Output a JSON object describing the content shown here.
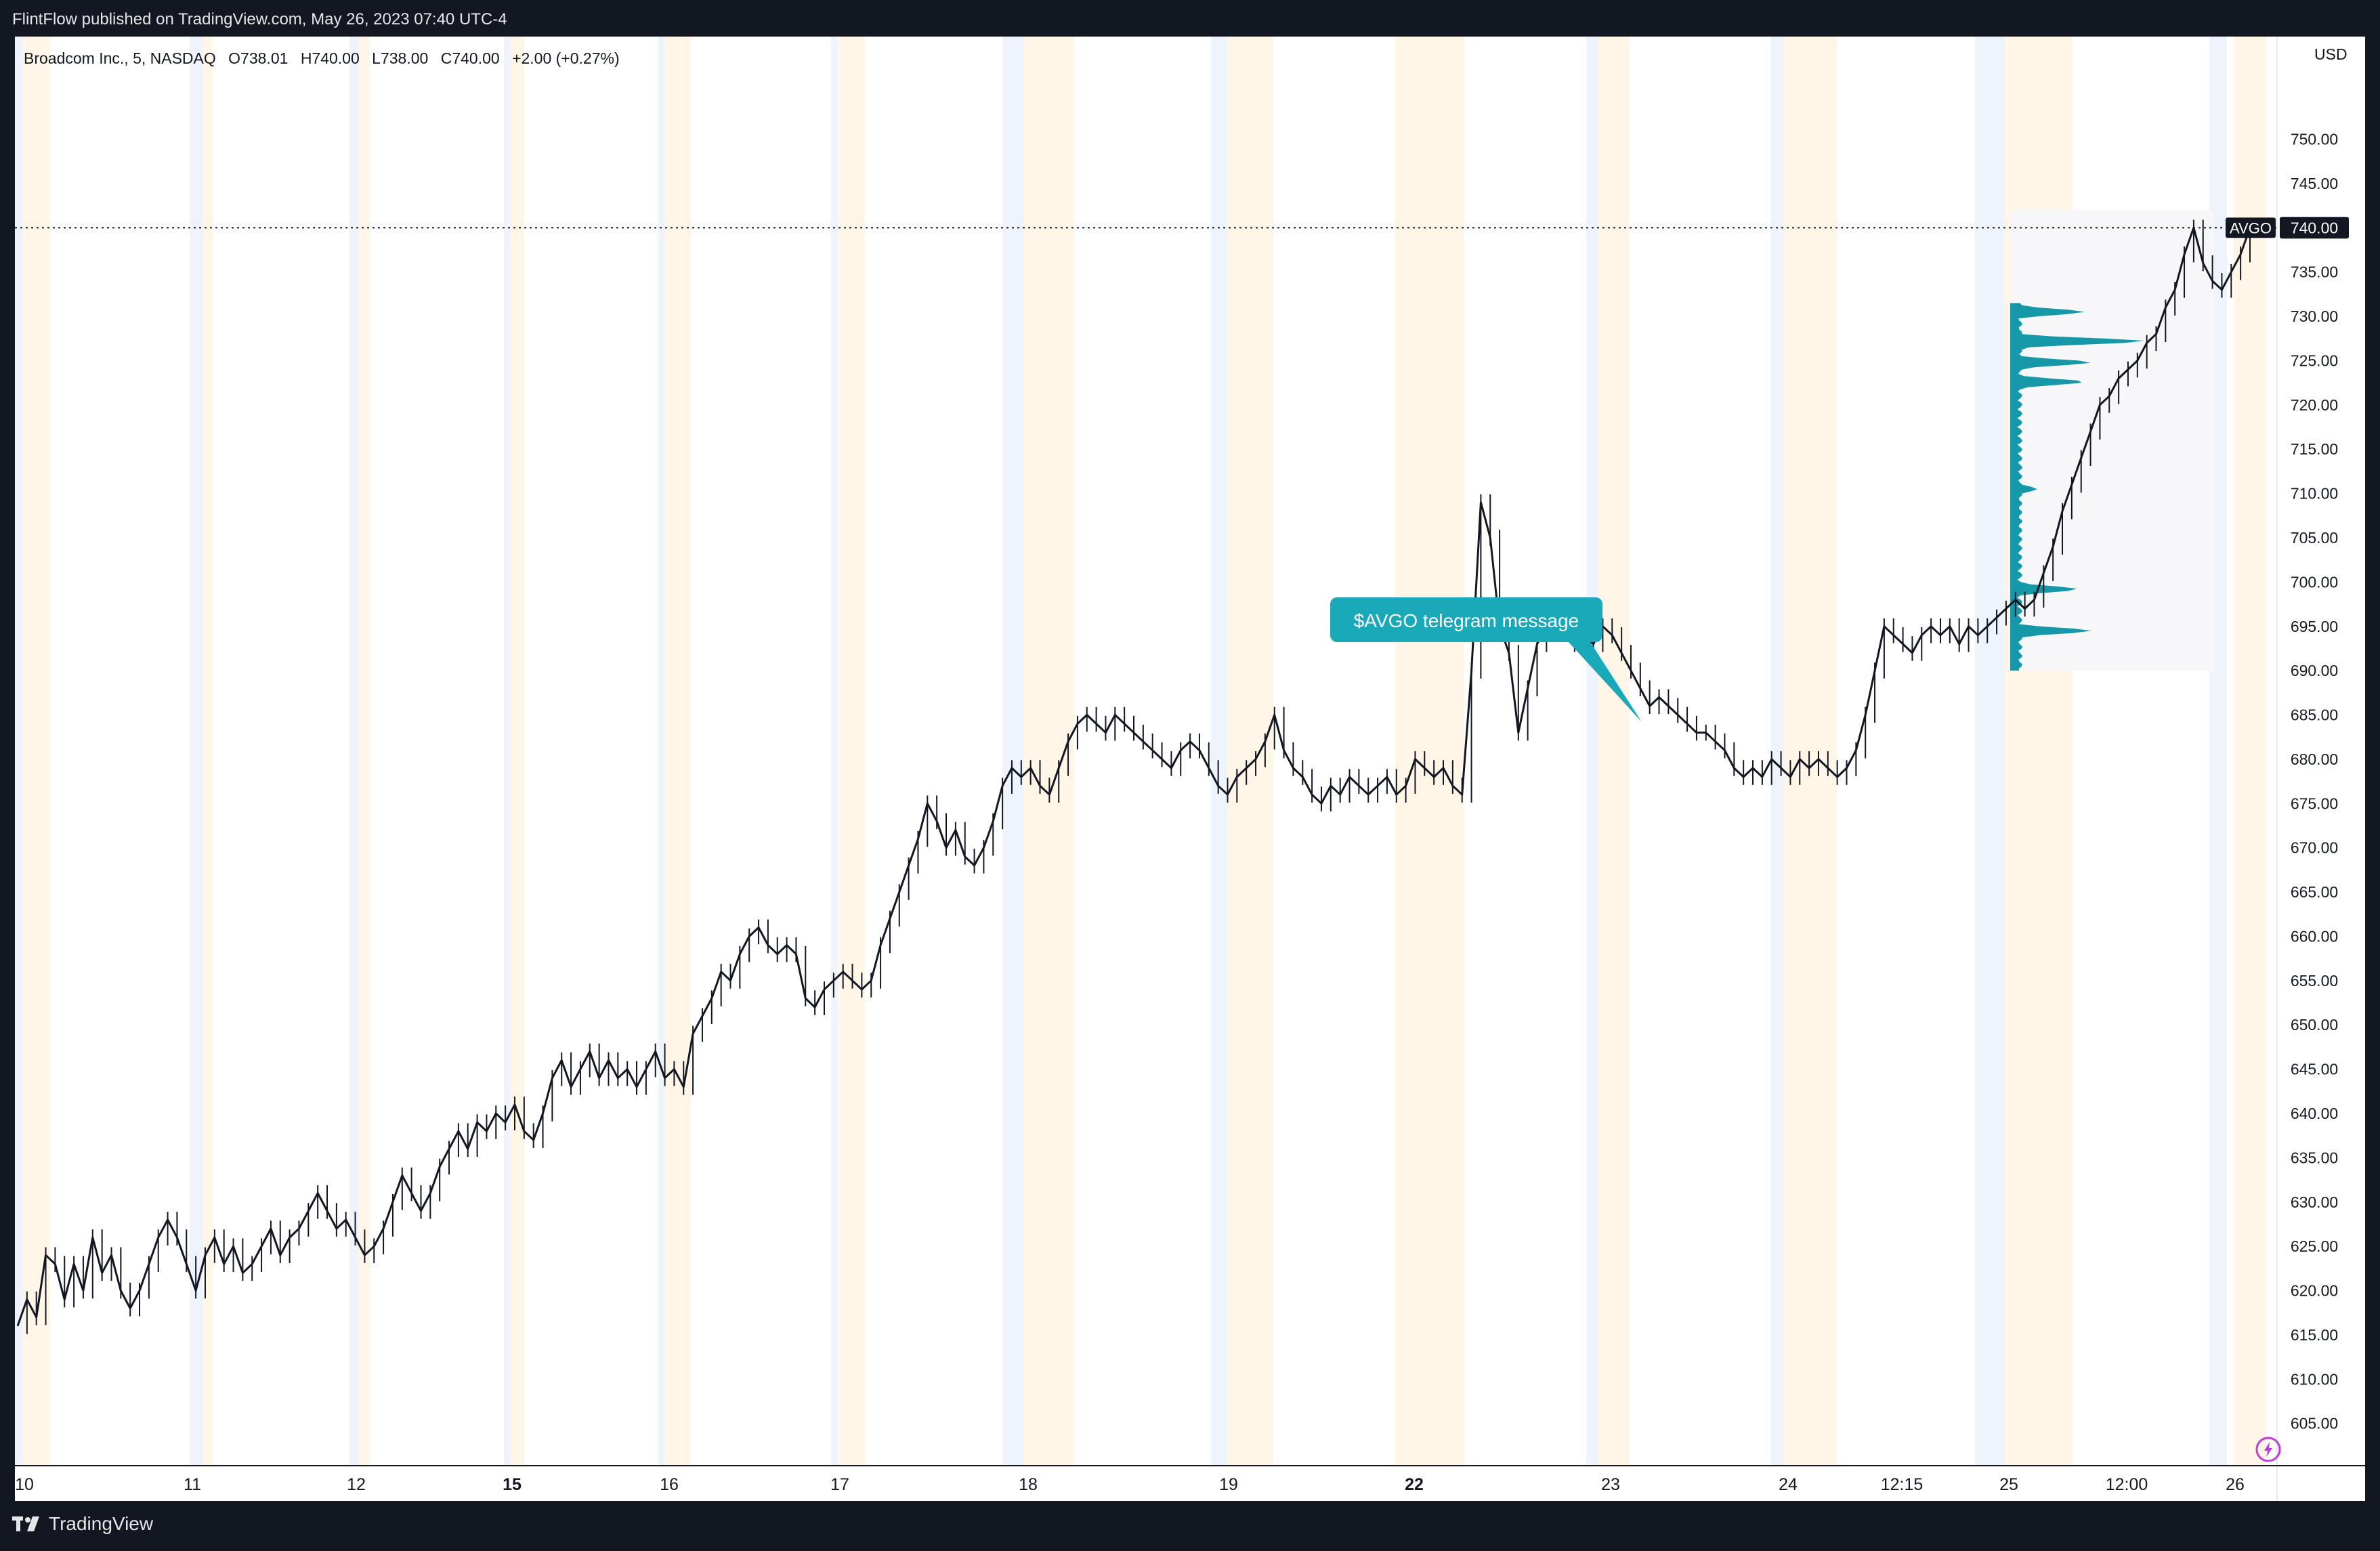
{
  "header": {
    "published": "FlintFlow published on TradingView.com, May 26, 2023 07:40 UTC-4"
  },
  "legend": {
    "symbol": "Broadcom Inc., 5, NASDAQ",
    "open": "O738.01",
    "high": "H740.00",
    "low": "L738.00",
    "close": "C740.00",
    "change": "+2.00 (+0.27%)"
  },
  "price_axis": {
    "currency": "USD",
    "last_price_label": "740.00",
    "ticker_label": "AVGO"
  },
  "annotation": {
    "text": "$AVGO telegram message"
  },
  "footer": {
    "brand": "TradingView"
  },
  "colors": {
    "candle": "#131722",
    "volume_profile": "#1798a8",
    "annotation_bg": "#1aa9b8",
    "premarket_band": "#eef3fc",
    "postmarket_band": "#fff6e8",
    "frame": "#131722"
  },
  "icons": {
    "alert": "lightning-bolt-icon",
    "logo": "tradingview-logo-icon"
  },
  "chart_data": {
    "type": "line",
    "title": "Broadcom Inc., 5, NASDAQ",
    "xlabel": "",
    "ylabel": "",
    "ylim": [
      601,
      757
    ],
    "y_ticks": [
      605,
      610,
      615,
      620,
      625,
      630,
      635,
      640,
      645,
      650,
      655,
      660,
      665,
      670,
      675,
      680,
      685,
      690,
      695,
      700,
      705,
      710,
      715,
      720,
      725,
      730,
      735,
      740,
      745,
      750
    ],
    "x_tick_labels": [
      {
        "label": "10",
        "bold": false
      },
      {
        "label": "11",
        "bold": false
      },
      {
        "label": "12",
        "bold": false
      },
      {
        "label": "15",
        "bold": true
      },
      {
        "label": "16",
        "bold": false
      },
      {
        "label": "17",
        "bold": false
      },
      {
        "label": "18",
        "bold": false
      },
      {
        "label": "19",
        "bold": false
      },
      {
        "label": "22",
        "bold": true
      },
      {
        "label": "23",
        "bold": false
      },
      {
        "label": "24",
        "bold": false
      },
      {
        "label": "12:15",
        "bold": false
      },
      {
        "label": "25",
        "bold": false
      },
      {
        "label": "12:00",
        "bold": false
      },
      {
        "label": "26",
        "bold": false
      }
    ],
    "series": [
      {
        "values": [
          616,
          619,
          617,
          624,
          623,
          619,
          623,
          620,
          626,
          622,
          624,
          620,
          618,
          620,
          623,
          626,
          628,
          626,
          623,
          620,
          624,
          626,
          623,
          625,
          622,
          623,
          625,
          627,
          624,
          626,
          627,
          629,
          631,
          629,
          627,
          628,
          626,
          624,
          625,
          627,
          630,
          633,
          631,
          629,
          631,
          634,
          636,
          638,
          636,
          639,
          638,
          640,
          639,
          641,
          638,
          637,
          640,
          644,
          646,
          643,
          645,
          647,
          644,
          646,
          644,
          645,
          643,
          645,
          647,
          644,
          645,
          643,
          649,
          651,
          653,
          656,
          655,
          658,
          660,
          661,
          659,
          658,
          659,
          658,
          653,
          652,
          654,
          655,
          656,
          655,
          654,
          655,
          659,
          662,
          665,
          668,
          671,
          675,
          673,
          670,
          672,
          669,
          668,
          670,
          673,
          677,
          679,
          678,
          679,
          677,
          676,
          679,
          682,
          684,
          685,
          684,
          683,
          685,
          684,
          683,
          682,
          681,
          680,
          679,
          681,
          682,
          681,
          679,
          677,
          676,
          678,
          679,
          680,
          682,
          685,
          681,
          679,
          678,
          676,
          675,
          677,
          676,
          678,
          677,
          676,
          677,
          678,
          676,
          677,
          680,
          679,
          678,
          679,
          677,
          676,
          690,
          709,
          705,
          695,
          692,
          683,
          688,
          693,
          695,
          697,
          696,
          693,
          694,
          693,
          695,
          694,
          692,
          690,
          688,
          686,
          687,
          686,
          685,
          684,
          683,
          683,
          682,
          681,
          679,
          678,
          679,
          678,
          680,
          679,
          678,
          680,
          679,
          680,
          679,
          678,
          679,
          681,
          685,
          690,
          695,
          694,
          693,
          692,
          694,
          695,
          694,
          695,
          693,
          695,
          694,
          695,
          696,
          697,
          698,
          697,
          698,
          701,
          704,
          708,
          711,
          714,
          717,
          720,
          721,
          723,
          724,
          725,
          727,
          728,
          731,
          733,
          737,
          740,
          736,
          734,
          733,
          735,
          737,
          740
        ]
      }
    ],
    "last_price": 740.0,
    "volume_profile": {
      "price_range": [
        690,
        742
      ],
      "peaks": [
        {
          "price": 730.5,
          "relative_width": 0.55
        },
        {
          "price": 727.2,
          "relative_width": 1.0
        },
        {
          "price": 724.8,
          "relative_width": 0.6
        },
        {
          "price": 722.6,
          "relative_width": 0.55
        },
        {
          "price": 699.2,
          "relative_width": 0.5
        },
        {
          "price": 694.5,
          "relative_width": 0.6
        },
        {
          "price": 710.5,
          "relative_width": 0.2
        }
      ]
    },
    "annotations": [
      {
        "text": "$AVGO telegram message",
        "price": 683
      }
    ]
  }
}
